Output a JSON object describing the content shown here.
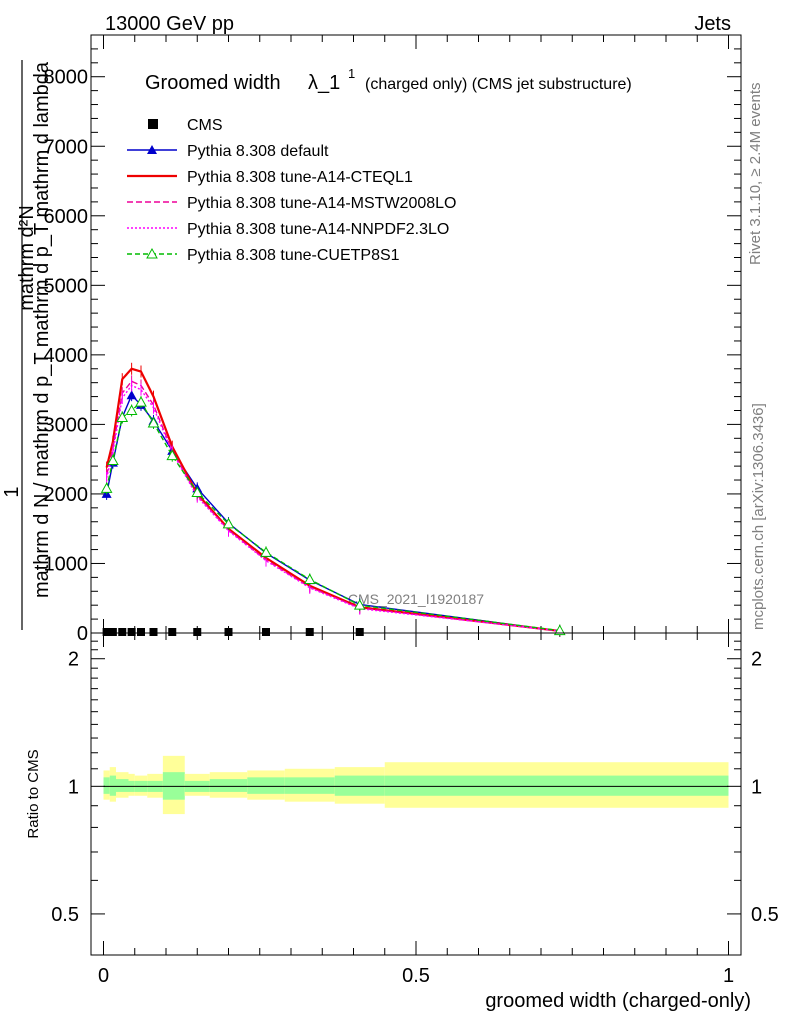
{
  "header": {
    "left": "13000 GeV pp",
    "right": "Jets"
  },
  "side_labels": {
    "rivet": "Rivet 3.1.10, ≥ 2.4M events",
    "mcplots": "mcplots.cern.ch [arXiv:1306.3436]"
  },
  "watermark": "CMS_2021_I1920187",
  "colors": {
    "cms": "#000000",
    "default": "#0000cc",
    "cteql1": "#ee0000",
    "mstw": "#ee0099",
    "nnpdf": "#ff00ff",
    "cuetp8s1": "#00bb00",
    "band_outer": "#ffff99",
    "band_inner": "#99ff99"
  },
  "chart_data": [
    {
      "type": "line",
      "title": {
        "main": "Groomed width",
        "symbol": "λ_1",
        "sup": "1",
        "sub": "(charged only) (CMS jet substructure)"
      },
      "xlabel": "",
      "ylabel": {
        "numerator": "mathrm d²N",
        "frac_1": "1",
        "denominator": "mathrm d N / mathrm d p_T mathrm d p_T mathrm d lambda"
      },
      "xlim": [
        -0.02,
        1.02
      ],
      "ylim": [
        0,
        8600
      ],
      "yticks": [
        0,
        1000,
        2000,
        3000,
        4000,
        5000,
        6000,
        7000,
        8000
      ],
      "ytick_labels": [
        "0",
        "1000",
        "2000",
        "3000",
        "4000",
        "5000",
        "6000",
        "7000",
        "8000"
      ],
      "legend_position": "top-left",
      "x": [
        0.005,
        0.015,
        0.03,
        0.045,
        0.06,
        0.08,
        0.11,
        0.15,
        0.2,
        0.26,
        0.33,
        0.41,
        0.73
      ],
      "series": [
        {
          "name": "CMS",
          "style": "marker-square",
          "color_key": "cms",
          "values": [
            0,
            0,
            0,
            0,
            0,
            0,
            0,
            0,
            0,
            0,
            0,
            0,
            null
          ]
        },
        {
          "name": "Pythia 8.308 default",
          "style": "solid-triangle",
          "color_key": "default",
          "values": [
            2000,
            2450,
            3100,
            3420,
            3280,
            3050,
            2620,
            2080,
            1580,
            1150,
            760,
            410,
            30
          ]
        },
        {
          "name": "Pythia 8.308 tune-A14-CTEQL1",
          "style": "solid",
          "color_key": "cteql1",
          "values": [
            2380,
            2750,
            3650,
            3800,
            3760,
            3400,
            2680,
            2000,
            1500,
            1080,
            680,
            370,
            30
          ]
        },
        {
          "name": "Pythia 8.308 tune-A14-MSTW2008LO",
          "style": "dashed",
          "color_key": "mstw",
          "values": [
            2270,
            2650,
            3450,
            3620,
            3560,
            3280,
            2620,
            1980,
            1480,
            1050,
            660,
            360,
            30
          ]
        },
        {
          "name": "Pythia 8.308 tune-A14-NNPDF2.3LO",
          "style": "dotted",
          "color_key": "nnpdf",
          "values": [
            2230,
            2600,
            3380,
            3560,
            3500,
            3240,
            2600,
            1960,
            1470,
            1040,
            650,
            350,
            30
          ]
        },
        {
          "name": "Pythia 8.308 tune-CUETP8S1",
          "style": "dashed-open-triangle",
          "color_key": "cuetp8s1",
          "values": [
            2080,
            2480,
            3100,
            3200,
            3320,
            3020,
            2550,
            2020,
            1570,
            1160,
            770,
            400,
            35
          ]
        }
      ]
    },
    {
      "type": "area",
      "title": "",
      "xlabel": "groomed width (charged-only)",
      "ylabel": "Ratio to CMS",
      "xlim": [
        -0.02,
        1.02
      ],
      "ylim": [
        0.4,
        2.3
      ],
      "log_y": true,
      "yticks": [
        0.5,
        1,
        2
      ],
      "ytick_labels": [
        "0.5",
        "1",
        "2"
      ],
      "xticks": [
        0,
        0.5,
        1
      ],
      "xtick_labels": [
        "0",
        "0.5",
        "1"
      ],
      "reference": 1,
      "bins": [
        {
          "x_low": 0.0,
          "x_high": 0.01,
          "outer": [
            0.93,
            1.09
          ],
          "inner": [
            0.96,
            1.05
          ]
        },
        {
          "x_low": 0.01,
          "x_high": 0.02,
          "outer": [
            0.92,
            1.11
          ],
          "inner": [
            0.95,
            1.06
          ]
        },
        {
          "x_low": 0.02,
          "x_high": 0.04,
          "outer": [
            0.94,
            1.08
          ],
          "inner": [
            0.97,
            1.04
          ]
        },
        {
          "x_low": 0.04,
          "x_high": 0.05,
          "outer": [
            0.95,
            1.07
          ],
          "inner": [
            0.97,
            1.03
          ]
        },
        {
          "x_low": 0.05,
          "x_high": 0.07,
          "outer": [
            0.95,
            1.06
          ],
          "inner": [
            0.97,
            1.03
          ]
        },
        {
          "x_low": 0.07,
          "x_high": 0.095,
          "outer": [
            0.94,
            1.07
          ],
          "inner": [
            0.97,
            1.03
          ]
        },
        {
          "x_low": 0.095,
          "x_high": 0.13,
          "outer": [
            0.86,
            1.18
          ],
          "inner": [
            0.93,
            1.08
          ]
        },
        {
          "x_low": 0.13,
          "x_high": 0.17,
          "outer": [
            0.95,
            1.07
          ],
          "inner": [
            0.97,
            1.03
          ]
        },
        {
          "x_low": 0.17,
          "x_high": 0.23,
          "outer": [
            0.94,
            1.08
          ],
          "inner": [
            0.97,
            1.04
          ]
        },
        {
          "x_low": 0.23,
          "x_high": 0.29,
          "outer": [
            0.93,
            1.09
          ],
          "inner": [
            0.96,
            1.05
          ]
        },
        {
          "x_low": 0.29,
          "x_high": 0.37,
          "outer": [
            0.92,
            1.1
          ],
          "inner": [
            0.96,
            1.05
          ]
        },
        {
          "x_low": 0.37,
          "x_high": 0.45,
          "outer": [
            0.91,
            1.11
          ],
          "inner": [
            0.95,
            1.06
          ]
        },
        {
          "x_low": 0.45,
          "x_high": 1.0,
          "outer": [
            0.89,
            1.14
          ],
          "inner": [
            0.95,
            1.06
          ]
        }
      ]
    }
  ]
}
